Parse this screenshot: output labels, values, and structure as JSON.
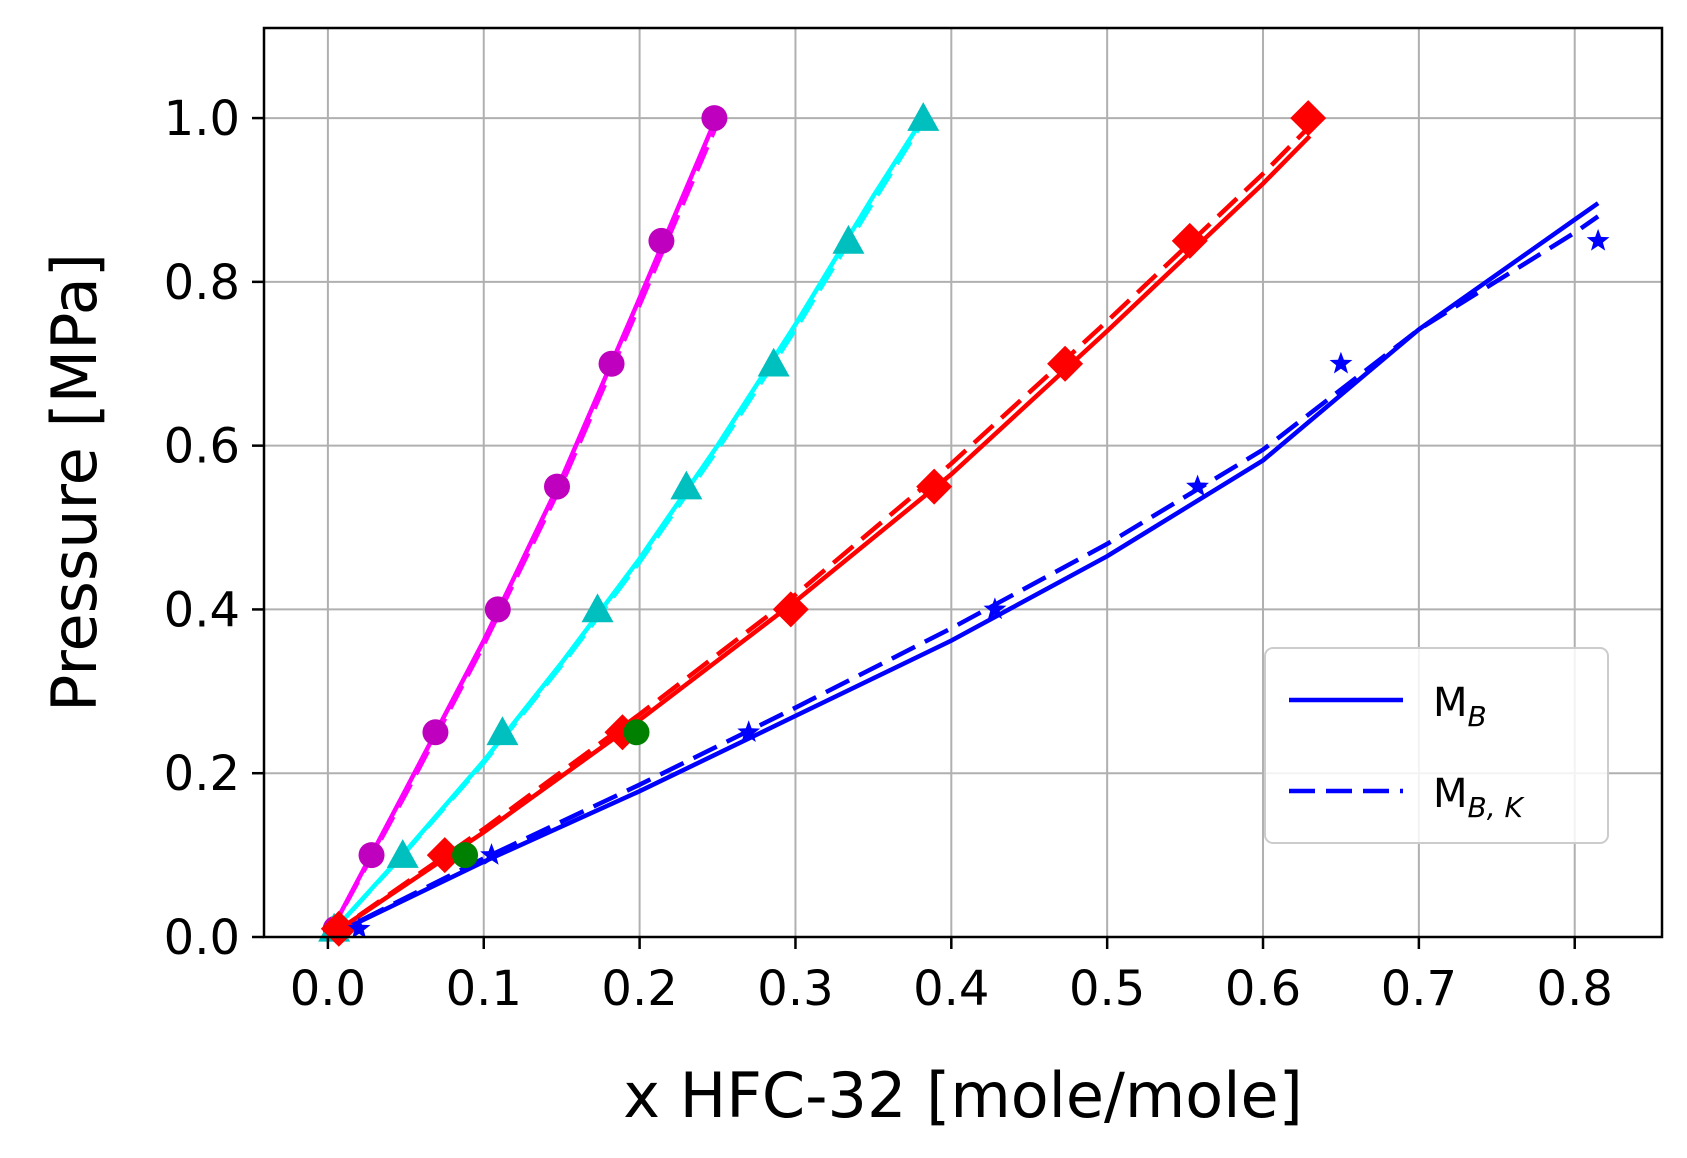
{
  "chart_data": {
    "type": "line",
    "title": "",
    "xlabel": "x HFC-32 [mole/mole]",
    "ylabel": "Pressure [MPa]",
    "xlim": [
      -0.041,
      0.856
    ],
    "ylim": [
      0.0,
      1.11
    ],
    "xticks": [
      0.0,
      0.1,
      0.2,
      0.3,
      0.4,
      0.5,
      0.6,
      0.7,
      0.8
    ],
    "xtick_labels": [
      "0.0",
      "0.1",
      "0.2",
      "0.3",
      "0.4",
      "0.5",
      "0.6",
      "0.7",
      "0.8"
    ],
    "yticks": [
      0.0,
      0.2,
      0.4,
      0.6,
      0.8,
      1.0
    ],
    "ytick_labels": [
      "0.0",
      "0.2",
      "0.4",
      "0.6",
      "0.8",
      "1.0"
    ],
    "grid": true,
    "legend_position": "lower-right",
    "legend": [
      {
        "main": "M",
        "sub": "B",
        "style": "solid",
        "color": "#0000ff"
      },
      {
        "main": "M",
        "sub": "B, K",
        "style": "dashed",
        "color": "#0000ff"
      }
    ],
    "series": [
      {
        "color": "#ff00ff",
        "marker": "circle",
        "marker_color": "#bf00bf",
        "points": [
          [
            0.005,
            0.01
          ],
          [
            0.028,
            0.1
          ],
          [
            0.069,
            0.25
          ],
          [
            0.109,
            0.4
          ],
          [
            0.147,
            0.55
          ],
          [
            0.182,
            0.7
          ],
          [
            0.214,
            0.85
          ],
          [
            0.248,
            1.0
          ]
        ],
        "model_solid": [
          [
            0.0,
            0.0
          ],
          [
            0.05,
            0.18
          ],
          [
            0.1,
            0.362
          ],
          [
            0.15,
            0.56
          ],
          [
            0.2,
            0.78
          ],
          [
            0.248,
            0.995
          ]
        ],
        "model_dashed": [
          [
            0.0,
            0.0
          ],
          [
            0.05,
            0.175
          ],
          [
            0.1,
            0.357
          ],
          [
            0.15,
            0.553
          ],
          [
            0.2,
            0.772
          ],
          [
            0.248,
            0.985
          ]
        ]
      },
      {
        "color": "#00ffff",
        "marker": "triangle",
        "marker_color": "#00bfbf",
        "points": [
          [
            0.004,
            0.01
          ],
          [
            0.048,
            0.1
          ],
          [
            0.112,
            0.25
          ],
          [
            0.173,
            0.4
          ],
          [
            0.23,
            0.55
          ],
          [
            0.286,
            0.7
          ],
          [
            0.334,
            0.85
          ],
          [
            0.382,
            1.0
          ]
        ],
        "model_solid": [
          [
            0.0,
            0.0
          ],
          [
            0.05,
            0.105
          ],
          [
            0.1,
            0.215
          ],
          [
            0.15,
            0.335
          ],
          [
            0.2,
            0.462
          ],
          [
            0.25,
            0.6
          ],
          [
            0.3,
            0.748
          ],
          [
            0.35,
            0.905
          ],
          [
            0.382,
            1.0
          ]
        ],
        "model_dashed": [
          [
            0.0,
            0.0
          ],
          [
            0.05,
            0.104
          ],
          [
            0.1,
            0.213
          ],
          [
            0.15,
            0.332
          ],
          [
            0.2,
            0.458
          ],
          [
            0.25,
            0.595
          ],
          [
            0.3,
            0.742
          ],
          [
            0.35,
            0.898
          ],
          [
            0.38,
            0.99
          ]
        ]
      },
      {
        "color": "#ff0000",
        "marker": "diamond",
        "marker_color": "#ff0000",
        "points": [
          [
            0.007,
            0.01
          ],
          [
            0.075,
            0.1
          ],
          [
            0.189,
            0.25
          ],
          [
            0.297,
            0.4
          ],
          [
            0.389,
            0.55
          ],
          [
            0.473,
            0.7
          ],
          [
            0.553,
            0.85
          ],
          [
            0.629,
            1.0
          ]
        ],
        "model_solid": [
          [
            0.0,
            0.0
          ],
          [
            0.1,
            0.128
          ],
          [
            0.2,
            0.265
          ],
          [
            0.3,
            0.41
          ],
          [
            0.4,
            0.565
          ],
          [
            0.5,
            0.74
          ],
          [
            0.6,
            0.92
          ],
          [
            0.63,
            0.978
          ]
        ],
        "model_dashed": [
          [
            0.0,
            0.0
          ],
          [
            0.1,
            0.132
          ],
          [
            0.2,
            0.272
          ],
          [
            0.3,
            0.418
          ],
          [
            0.4,
            0.578
          ],
          [
            0.5,
            0.752
          ],
          [
            0.6,
            0.932
          ],
          [
            0.63,
            0.99
          ]
        ]
      },
      {
        "color": "#0000ff",
        "marker": "star",
        "marker_color": "#0000ff",
        "points": [
          [
            0.02,
            0.01
          ],
          [
            0.105,
            0.1
          ],
          [
            0.27,
            0.25
          ],
          [
            0.428,
            0.4
          ],
          [
            0.558,
            0.55
          ],
          [
            0.65,
            0.7
          ],
          [
            0.815,
            0.85
          ]
        ],
        "model_solid": [
          [
            0.0,
            0.0
          ],
          [
            0.1,
            0.092
          ],
          [
            0.2,
            0.178
          ],
          [
            0.3,
            0.27
          ],
          [
            0.4,
            0.362
          ],
          [
            0.5,
            0.465
          ],
          [
            0.6,
            0.582
          ],
          [
            0.7,
            0.742
          ],
          [
            0.8,
            0.876
          ],
          [
            0.815,
            0.896
          ]
        ],
        "model_dashed": [
          [
            0.0,
            0.0
          ],
          [
            0.1,
            0.096
          ],
          [
            0.2,
            0.186
          ],
          [
            0.3,
            0.28
          ],
          [
            0.4,
            0.377
          ],
          [
            0.5,
            0.48
          ],
          [
            0.6,
            0.595
          ],
          [
            0.7,
            0.742
          ],
          [
            0.8,
            0.86
          ],
          [
            0.815,
            0.88
          ]
        ]
      },
      {
        "color": "#008000",
        "marker": "circle",
        "marker_color": "#008000",
        "points": [
          [
            0.088,
            0.1
          ],
          [
            0.198,
            0.25
          ]
        ]
      }
    ]
  }
}
